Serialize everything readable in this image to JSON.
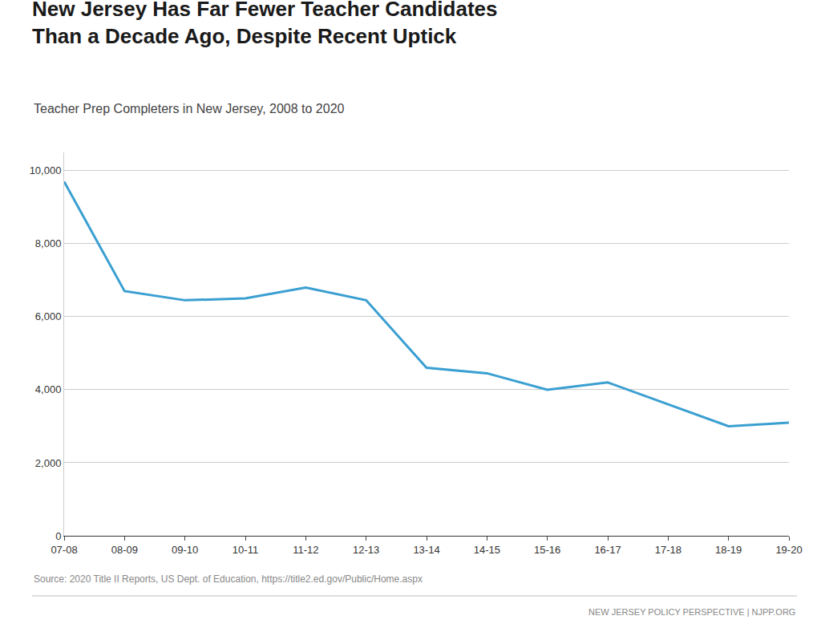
{
  "chart_data": {
    "type": "line",
    "title": "New Jersey Has Far Fewer Teacher Candidates\nThan a Decade Ago, Despite Recent Uptick",
    "subtitle": "Teacher Prep Completers in New Jersey, 2008 to 2020",
    "annotations": [
      "Source: 2020 Title II Reports, US Dept. of Education, https://title2.ed.gov/Public/Home.aspx",
      "NEW JERSEY POLICY PERSPECTIVE | NJPP.ORG"
    ],
    "categories": [
      "07-08",
      "08-09",
      "09-10",
      "10-11",
      "11-12",
      "12-13",
      "13-14",
      "14-15",
      "15-16",
      "16-17",
      "17-18",
      "18-19",
      "19-20"
    ],
    "values": [
      9700,
      6700,
      6450,
      6500,
      6800,
      6450,
      4600,
      4450,
      4000,
      4200,
      3600,
      3000,
      3100
    ],
    "color": "#3a9fd1",
    "ylim": [
      0,
      10500
    ],
    "yticks": [
      0,
      {
        "value": 2000,
        "label": "2,000"
      },
      {
        "value": 4000,
        "label": "4,000"
      },
      {
        "value": 6000,
        "label": "6,000"
      },
      {
        "value": 8000,
        "label": "8,000"
      },
      {
        "value": 10000,
        "label": "10,000"
      }
    ],
    "grid": true
  }
}
